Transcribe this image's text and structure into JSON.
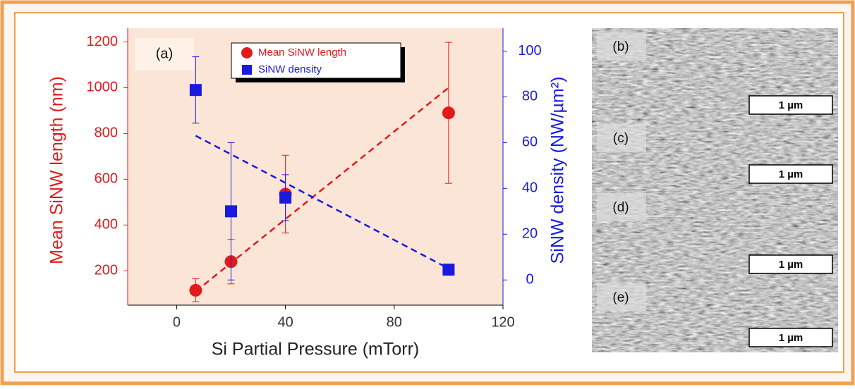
{
  "chart_data": {
    "type": "scatter",
    "xlabel": "Si Partial Pressure (mTorr)",
    "ylabel": "Mean SiNW length (nm)",
    "y2label": "SiNW density (NW/µm²)",
    "annotation": "(a)",
    "xlim": [
      -18,
      120
    ],
    "xticks": [
      0,
      40,
      80,
      120
    ],
    "ylim": [
      50,
      1260
    ],
    "yticks": [
      200,
      400,
      600,
      800,
      1000,
      1200
    ],
    "y2lim": [
      -11,
      110
    ],
    "y2ticks": [
      0,
      20,
      40,
      60,
      80,
      100
    ],
    "series": [
      {
        "name": "Mean SiNW length",
        "color": "#e31a1c",
        "marker": "circle",
        "x": [
          7,
          20,
          40,
          100
        ],
        "values": [
          115,
          240,
          535,
          890
        ],
        "errors": [
          50,
          97,
          170,
          308
        ]
      },
      {
        "name": "SiNW density",
        "color": "#1a1adf",
        "marker": "square",
        "axis": "y2",
        "x": [
          7,
          20,
          40,
          100
        ],
        "values": [
          83,
          30,
          36,
          4.5
        ],
        "errors": [
          14.5,
          30,
          10,
          0
        ]
      }
    ],
    "fits": [
      {
        "color": "#e31a1c",
        "x": [
          7,
          100
        ],
        "values": [
          110,
          1000
        ]
      },
      {
        "color": "#1a1adf",
        "axis": "y2",
        "x": [
          7,
          100
        ],
        "values": [
          63,
          5
        ]
      }
    ]
  },
  "panels": [
    {
      "label": "(b)",
      "scale_bar": "1 µm"
    },
    {
      "label": "(c)",
      "scale_bar": "1 µm"
    },
    {
      "label": "(d)",
      "scale_bar": "1 µm"
    },
    {
      "label": "(e)",
      "scale_bar": "1 µm"
    }
  ]
}
